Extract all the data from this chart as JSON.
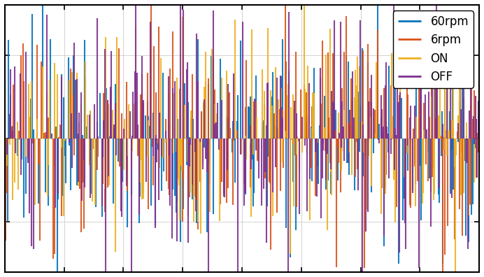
{
  "legend_labels": [
    "60rpm",
    "6rpm",
    "ON",
    "OFF"
  ],
  "legend_colors": [
    "#0072bd",
    "#d95319",
    "#edb120",
    "#7e2f8e"
  ],
  "xlim": [
    0,
    1
  ],
  "ylim": [
    -1.6,
    1.6
  ],
  "yticks": [
    -1,
    0,
    1
  ],
  "xticks": [
    0.0,
    0.125,
    0.25,
    0.375,
    0.5,
    0.625,
    0.75,
    0.875,
    1.0
  ],
  "n_points": 500,
  "background_color": "#ffffff",
  "grid_color": "#c0c0c0",
  "legend_loc": "upper right",
  "fig_width": 6.92,
  "fig_height": 3.96,
  "dpi": 100,
  "seeds": [
    1,
    2,
    3,
    4
  ],
  "scales": [
    0.6,
    0.65,
    0.65,
    0.75
  ],
  "lw": 1.5
}
